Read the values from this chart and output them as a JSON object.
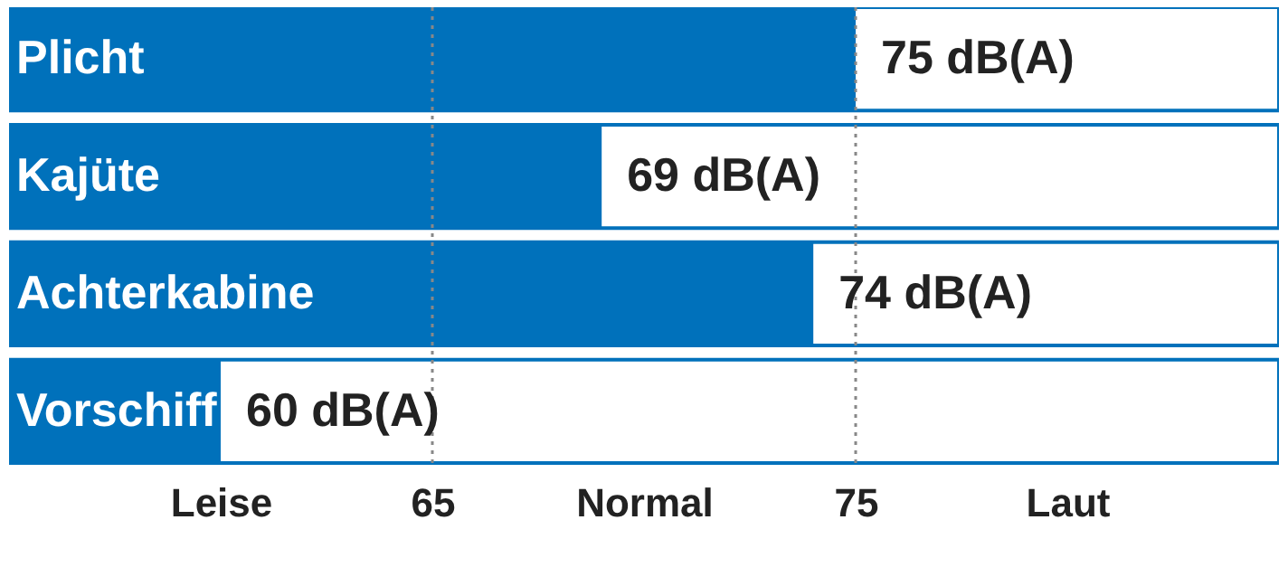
{
  "chart_data": {
    "type": "bar",
    "orientation": "horizontal",
    "categories": [
      "Plicht",
      "Kajüte",
      "Achterkabine",
      "Vorschiff"
    ],
    "values": [
      75,
      69,
      74,
      60
    ],
    "value_labels": [
      "75 dB(A)",
      "69 dB(A)",
      "74 dB(A)",
      "60 dB(A)"
    ],
    "color": "#0071bb",
    "xlim": [
      55,
      85
    ],
    "xticks": [
      {
        "value": 60,
        "label": "Leise"
      },
      65,
      {
        "value": 70,
        "label": "Normal"
      },
      75,
      {
        "value": 80,
        "label": "Laut"
      }
    ],
    "ref_lines": [
      {
        "axis": "x",
        "value": 65,
        "color": "#888888",
        "line_style": "dotted"
      },
      {
        "axis": "x",
        "value": 75,
        "color": "#888888",
        "line_style": "dotted"
      }
    ],
    "grid": false
  }
}
